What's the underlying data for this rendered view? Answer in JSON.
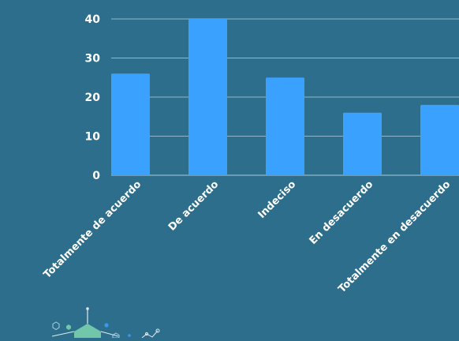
{
  "chart_data": {
    "type": "bar",
    "categories": [
      "Totalmente de acuerdo",
      "De acuerdo",
      "Indeciso",
      "En desacuerdo",
      "Totalmente en desacuerdo"
    ],
    "values": [
      26,
      40,
      25,
      16,
      18
    ],
    "title": "",
    "xlabel": "",
    "ylabel": "",
    "ylim": [
      0,
      40
    ],
    "yticks": [
      0,
      10,
      20,
      30,
      40
    ],
    "grid": true,
    "legend": "none",
    "colors": {
      "background": "#2d6e8c",
      "bar": "#3aa1ff",
      "grid": "#8fb8cc",
      "text": "#ffffff"
    }
  },
  "decoration": {
    "icon": "molecule-network-icon"
  }
}
